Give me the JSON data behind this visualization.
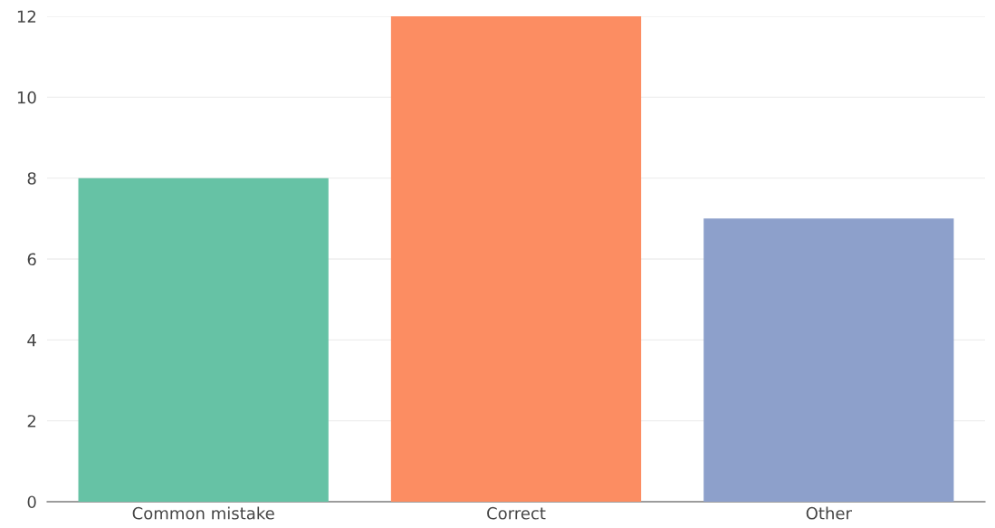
{
  "chart_data": {
    "type": "bar",
    "categories": [
      "Common mistake",
      "Correct",
      "Other"
    ],
    "values": [
      8,
      12,
      7
    ],
    "colors": [
      "#66c2a5",
      "#fc8d62",
      "#8da0cb"
    ],
    "ylim": [
      0,
      12
    ],
    "yticks": [
      0,
      2,
      4,
      6,
      8,
      10,
      12
    ],
    "grid": "y"
  }
}
